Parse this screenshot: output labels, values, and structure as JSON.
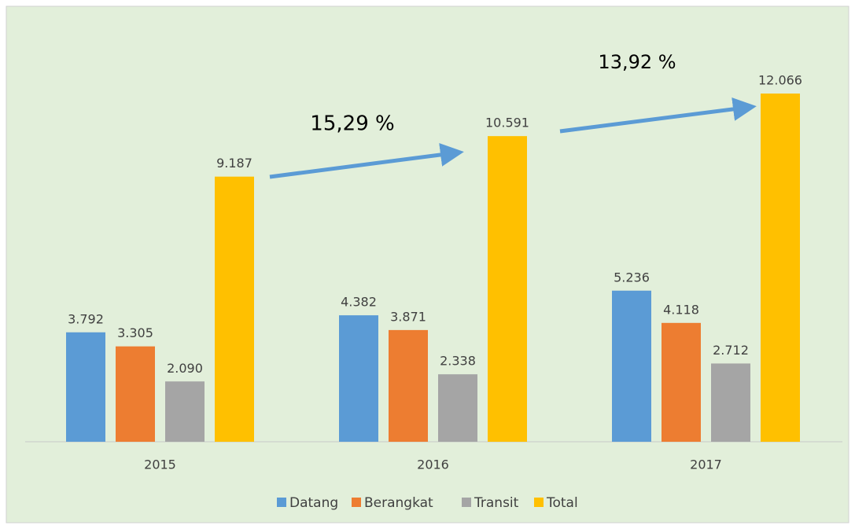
{
  "chart_data": {
    "type": "bar",
    "categories": [
      "2015",
      "2016",
      "2017"
    ],
    "series": [
      {
        "name": "Datang",
        "color": "#5b9bd5",
        "values": [
          3792,
          4382,
          5236
        ],
        "value_labels": [
          "3.792",
          "4.382",
          "5.236"
        ]
      },
      {
        "name": "Berangkat",
        "color": "#ed7d31",
        "values": [
          3305,
          3871,
          4118
        ],
        "value_labels": [
          "3.305",
          "3.871",
          "4.118"
        ]
      },
      {
        "name": "Transit",
        "color": "#a5a5a5",
        "values": [
          2090,
          2338,
          2712
        ],
        "value_labels": [
          "2.090",
          "2.338",
          "2.712"
        ]
      },
      {
        "name": "Total",
        "color": "#ffc000",
        "values": [
          9187,
          10591,
          12066
        ],
        "value_labels": [
          "9.187",
          "10.591",
          "12.066"
        ]
      }
    ],
    "ylim": [
      0,
      14000
    ],
    "annotations": [
      "15,29 %",
      "13,92 %"
    ],
    "legend": "bottom"
  }
}
